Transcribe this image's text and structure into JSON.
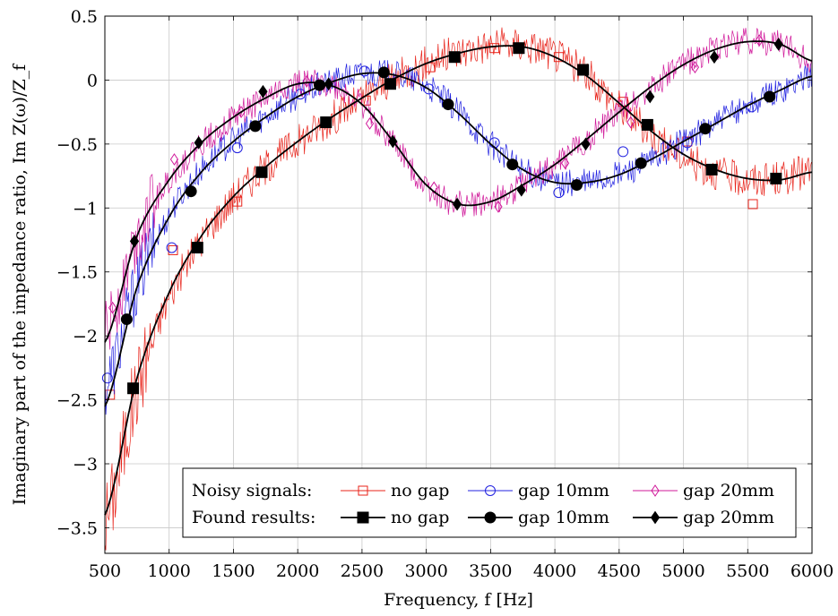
{
  "chart_data": {
    "type": "line",
    "xlabel": "Frequency, f [Hz]",
    "ylabel": "Imaginary part of the impedance ratio, Im Z(ω)/Z_f",
    "xlim": [
      500,
      6000
    ],
    "ylim": [
      -3.7,
      0.5
    ],
    "x_ticks": [
      500,
      1000,
      1500,
      2000,
      2500,
      3000,
      3500,
      4000,
      4500,
      5000,
      5500,
      6000
    ],
    "y_ticks": [
      0.5,
      0,
      -0.5,
      -1,
      -1.5,
      -2,
      -2.5,
      -3,
      -3.5
    ],
    "x_tick_labels": [
      "500",
      "1000",
      "1500",
      "2000",
      "2500",
      "3000",
      "3500",
      "4000",
      "4500",
      "5000",
      "5500",
      "6000"
    ],
    "y_tick_labels": [
      "0.5",
      "0",
      "−0.5",
      "−1",
      "−1.5",
      "−2",
      "−2.5",
      "−3",
      "−3.5"
    ],
    "grid": true,
    "legend_position": "bottom-right",
    "legend_rows": [
      {
        "label": "Noisy signals:",
        "entries": [
          "no gap",
          "gap 10mm",
          "gap 20mm"
        ]
      },
      {
        "label": "Found results:",
        "entries": [
          "no gap",
          "gap 10mm",
          "gap 20mm"
        ]
      }
    ],
    "series": [
      {
        "group": "Noisy signals",
        "name": "no gap",
        "color": "#e8231a",
        "marker": "square-open",
        "x": [
          500,
          750,
          1000,
          1250,
          1500,
          1750,
          2000,
          2250,
          2500,
          2750,
          3000,
          3250,
          3500,
          3750,
          4000,
          4250,
          4500,
          4750,
          5000,
          5250,
          5500,
          5750,
          6000
        ],
        "y": [
          -3.45,
          -2.4,
          -1.7,
          -1.25,
          -0.92,
          -0.68,
          -0.48,
          -0.31,
          -0.15,
          0.01,
          0.13,
          0.22,
          0.27,
          0.27,
          0.2,
          0.04,
          -0.2,
          -0.42,
          -0.6,
          -0.72,
          -0.78,
          -0.77,
          -0.71
        ],
        "noise": 0.14,
        "markers_x": [
          540,
          1030,
          1530,
          2530,
          3030,
          3530,
          4030,
          4530,
          5030,
          5540
        ],
        "markers_y": [
          -2.46,
          -1.33,
          -0.95,
          -0.16,
          0.1,
          0.25,
          0.18,
          -0.17,
          -0.48,
          -0.97
        ]
      },
      {
        "group": "Noisy signals",
        "name": "gap 10mm",
        "color": "#2020e0",
        "marker": "circle-open",
        "x": [
          500,
          750,
          1000,
          1250,
          1500,
          1750,
          2000,
          2250,
          2500,
          2750,
          3000,
          3250,
          3500,
          3750,
          4000,
          4250,
          4500,
          4750,
          5000,
          5250,
          5500,
          5750,
          6000
        ],
        "y": [
          -2.4,
          -1.6,
          -1.05,
          -0.7,
          -0.47,
          -0.28,
          -0.12,
          -0.02,
          0.05,
          0.04,
          -0.05,
          -0.25,
          -0.5,
          -0.7,
          -0.8,
          -0.8,
          -0.74,
          -0.63,
          -0.48,
          -0.34,
          -0.2,
          -0.08,
          0.03
        ],
        "noise": 0.11,
        "markers_x": [
          520,
          1020,
          1530,
          2020,
          2520,
          3020,
          3530,
          4030,
          4530,
          5030,
          5530
        ],
        "markers_y": [
          -2.33,
          -1.31,
          -0.53,
          -0.11,
          0.07,
          -0.07,
          -0.49,
          -0.88,
          -0.56,
          -0.49,
          -0.21
        ]
      },
      {
        "group": "Noisy signals",
        "name": "gap 20mm",
        "color": "#d0189a",
        "marker": "diamond-open",
        "x": [
          500,
          750,
          1000,
          1250,
          1500,
          1750,
          2000,
          2250,
          2500,
          2750,
          3000,
          3250,
          3500,
          3750,
          4000,
          4250,
          4500,
          4750,
          5000,
          5250,
          5500,
          5750,
          6000
        ],
        "y": [
          -2.0,
          -1.22,
          -0.78,
          -0.5,
          -0.3,
          -0.14,
          -0.03,
          -0.04,
          -0.2,
          -0.5,
          -0.83,
          -0.97,
          -0.95,
          -0.82,
          -0.66,
          -0.46,
          -0.25,
          -0.05,
          0.12,
          0.24,
          0.3,
          0.28,
          0.15
        ],
        "noise": 0.11,
        "markers_x": [
          560,
          1040,
          1560,
          2070,
          2560,
          3060,
          3560,
          4080,
          4590,
          5090,
          5590
        ],
        "markers_y": [
          -1.78,
          -0.62,
          -0.25,
          -0.01,
          -0.34,
          -0.84,
          -0.99,
          -0.65,
          -0.33,
          0.1,
          0.31
        ]
      },
      {
        "group": "Found results",
        "name": "no gap",
        "color": "#000000",
        "marker": "square",
        "x": [
          500,
          750,
          1000,
          1250,
          1500,
          1750,
          2000,
          2250,
          2500,
          2750,
          3000,
          3250,
          3500,
          3750,
          4000,
          4250,
          4500,
          4750,
          5000,
          5250,
          5500,
          5750,
          6000
        ],
        "y": [
          -3.4,
          -2.33,
          -1.66,
          -1.22,
          -0.91,
          -0.68,
          -0.48,
          -0.3,
          -0.14,
          0.01,
          0.13,
          0.21,
          0.26,
          0.26,
          0.18,
          0.03,
          -0.18,
          -0.4,
          -0.58,
          -0.7,
          -0.77,
          -0.78,
          -0.72
        ],
        "markers_x": [
          720,
          1220,
          1720,
          2220,
          2720,
          3220,
          3720,
          4220,
          4720,
          5220,
          5720
        ],
        "markers_y": [
          -2.41,
          -1.31,
          -0.72,
          -0.33,
          -0.03,
          0.18,
          0.25,
          0.08,
          -0.35,
          -0.7,
          -0.77
        ]
      },
      {
        "group": "Found results",
        "name": "gap 10mm",
        "color": "#000000",
        "marker": "circle",
        "x": [
          500,
          750,
          1000,
          1250,
          1500,
          1750,
          2000,
          2250,
          2500,
          2750,
          3000,
          3250,
          3500,
          3750,
          4000,
          4250,
          4500,
          4750,
          5000,
          5250,
          5500,
          5750,
          6000
        ],
        "y": [
          -2.55,
          -1.62,
          -1.07,
          -0.72,
          -0.48,
          -0.29,
          -0.13,
          -0.02,
          0.05,
          0.04,
          -0.06,
          -0.26,
          -0.5,
          -0.7,
          -0.8,
          -0.8,
          -0.74,
          -0.62,
          -0.48,
          -0.34,
          -0.2,
          -0.08,
          0.03
        ],
        "markers_x": [
          670,
          1170,
          1670,
          2170,
          2670,
          3170,
          3670,
          4170,
          4670,
          5170,
          5670
        ],
        "markers_y": [
          -1.87,
          -0.87,
          -0.36,
          -0.04,
          0.06,
          -0.19,
          -0.66,
          -0.82,
          -0.65,
          -0.38,
          -0.13
        ]
      },
      {
        "group": "Found results",
        "name": "gap 20mm",
        "color": "#000000",
        "marker": "diamond",
        "x": [
          500,
          750,
          1000,
          1250,
          1500,
          1750,
          2000,
          2250,
          2500,
          2750,
          3000,
          3250,
          3500,
          3750,
          4000,
          4250,
          4500,
          4750,
          5000,
          5250,
          5500,
          5750,
          6000
        ],
        "y": [
          -2.05,
          -1.22,
          -0.78,
          -0.49,
          -0.29,
          -0.14,
          -0.03,
          -0.04,
          -0.19,
          -0.49,
          -0.82,
          -0.97,
          -0.95,
          -0.82,
          -0.66,
          -0.46,
          -0.25,
          -0.05,
          0.12,
          0.24,
          0.3,
          0.28,
          0.15
        ],
        "markers_x": [
          730,
          1230,
          1730,
          2240,
          2740,
          3240,
          3740,
          4240,
          4740,
          5240,
          5740
        ],
        "markers_y": [
          -1.26,
          -0.49,
          -0.09,
          -0.03,
          -0.48,
          -0.97,
          -0.86,
          -0.5,
          -0.13,
          0.18,
          0.28
        ]
      }
    ]
  }
}
